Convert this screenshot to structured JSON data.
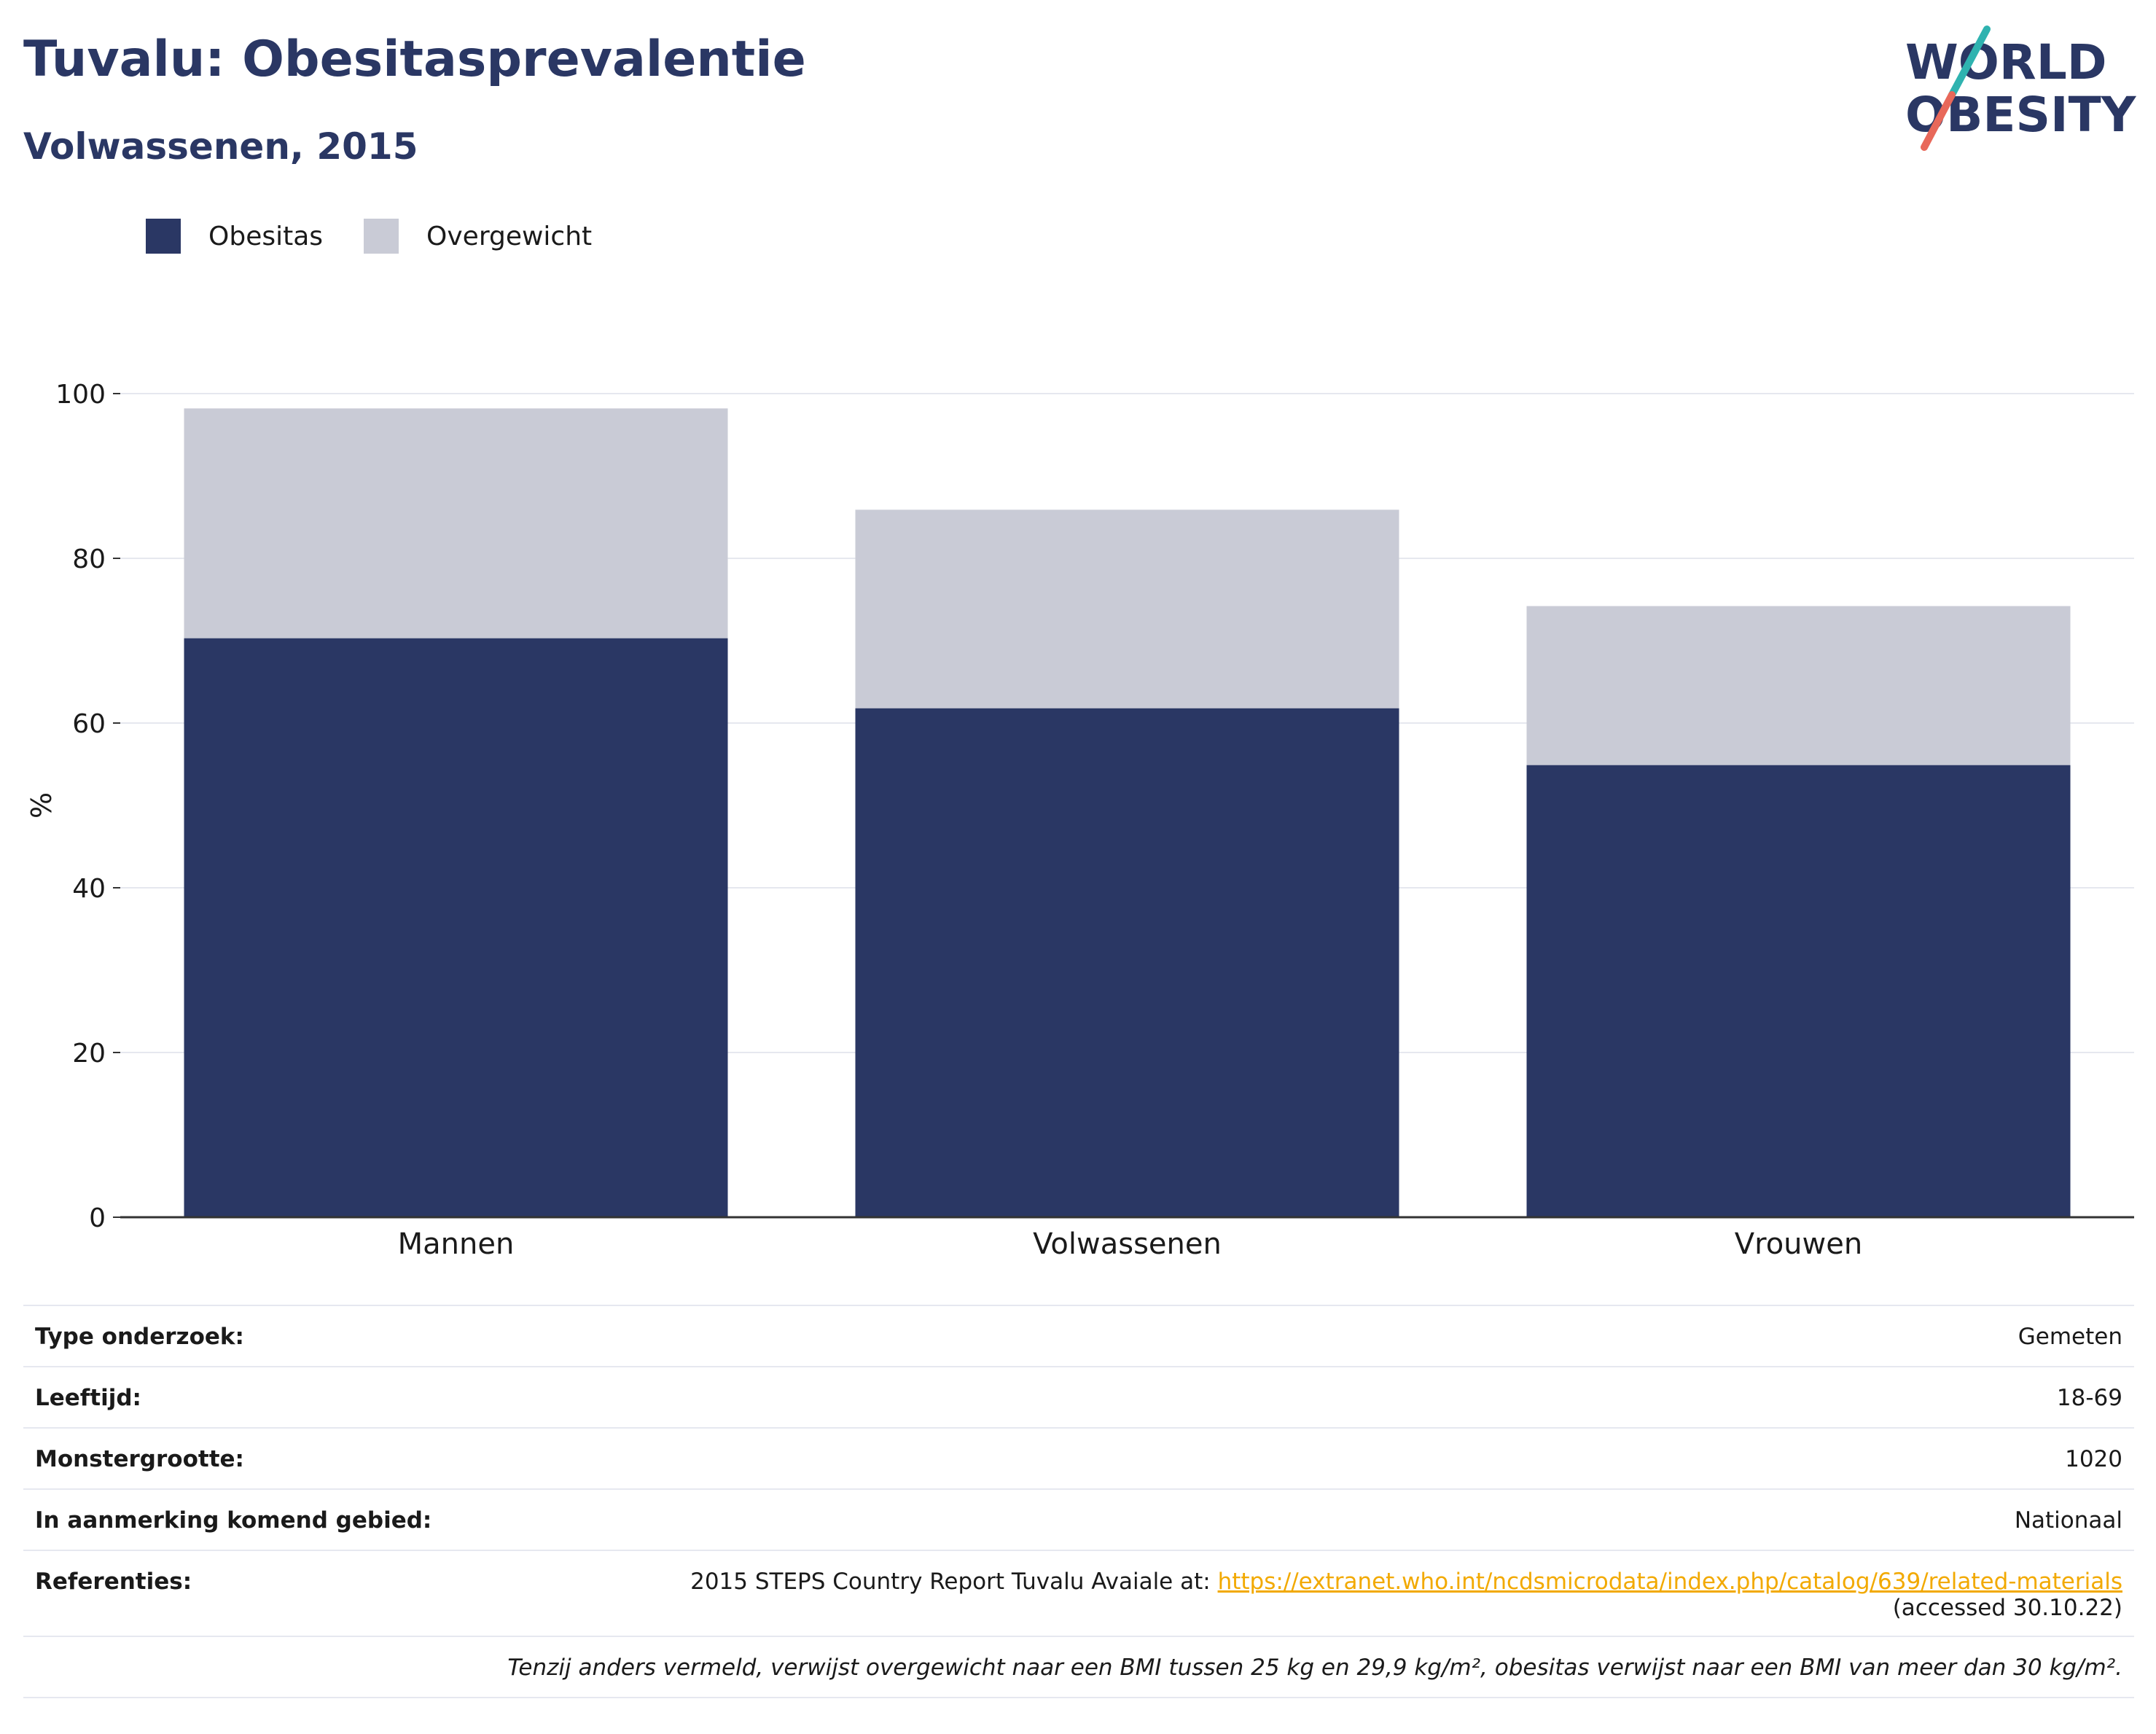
{
  "header": {
    "title": "Tuvalu: Obesitasprevalentie",
    "subtitle": "Volwassenen, 2015",
    "logo_line1": "WORLD",
    "logo_line2": "OBESITY"
  },
  "colors": {
    "obesitas": "#2a3764",
    "overgewicht": "#c9cbd6",
    "logo_text": "#2a3764",
    "logo_slash_top": "#2fb3b0",
    "logo_slash_bottom": "#e8685a",
    "link": "#f2a900"
  },
  "legend": [
    {
      "label": "Obesitas",
      "color": "#2a3764"
    },
    {
      "label": "Overgewicht",
      "color": "#c9cbd6"
    }
  ],
  "chart_data": {
    "type": "bar",
    "stacked": true,
    "categories": [
      "Mannen",
      "Volwassenen",
      "Vrouwen"
    ],
    "series": [
      {
        "name": "Obesitas",
        "values": [
          70.3,
          61.8,
          54.9
        ]
      },
      {
        "name": "Overgewicht",
        "values": [
          27.9,
          24.1,
          19.3
        ]
      }
    ],
    "ylabel": "%",
    "ylim": [
      0,
      100
    ],
    "yticks": [
      0,
      20,
      40,
      60,
      80,
      100
    ],
    "grid": true
  },
  "info": {
    "rows": [
      {
        "label": "Type onderzoek:",
        "value": "Gemeten"
      },
      {
        "label": "Leeftijd:",
        "value": "18-69"
      },
      {
        "label": "Monstergrootte:",
        "value": "1020"
      },
      {
        "label": "In aanmerking komend gebied:",
        "value": "Nationaal"
      }
    ],
    "references_label": "Referenties:",
    "references_text": "2015 STEPS Country Report Tuvalu Avaiale at: ",
    "references_link": "https://extranet.who.int/ncdsmicrodata/index.php/catalog/639/related-materials",
    "references_accessed": "(accessed 30.10.22)",
    "note": "Tenzij anders vermeld, verwijst overgewicht naar een BMI tussen 25 kg en 29,9 kg/m², obesitas verwijst naar een BMI van meer dan 30 kg/m²."
  }
}
